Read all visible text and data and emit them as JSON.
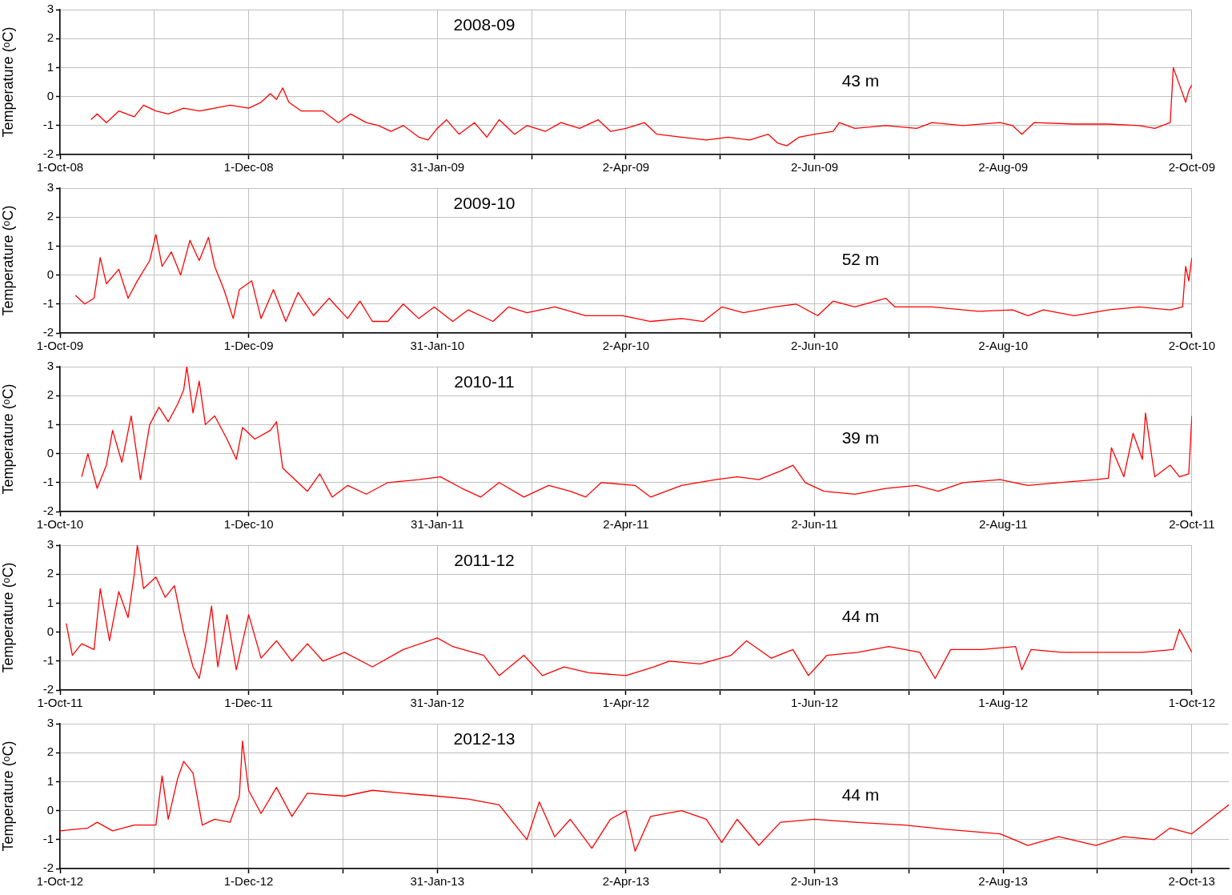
{
  "chart_data": [
    {
      "type": "line",
      "annotations": [
        "2008-09",
        "43 m"
      ],
      "ylabel": "Temperature (ᵒC)",
      "color": "#ff0000",
      "grid": true,
      "ylim": [
        -2,
        3
      ],
      "yticks": [
        -2,
        -1,
        0,
        1,
        2,
        3
      ],
      "xlim": [
        "2008-10-01",
        "2009-10-02"
      ],
      "xticks": [
        {
          "value": "2008-10-01",
          "label": "1-Oct-08"
        },
        {
          "value": "2008-10-31T12:00",
          "label": null
        },
        {
          "value": "2008-12-01",
          "label": "1-Dec-08"
        },
        {
          "value": "2008-12-31T12:00",
          "label": null
        },
        {
          "value": "2009-01-31",
          "label": "31-Jan-09"
        },
        {
          "value": "2009-03-02T12:00",
          "label": null
        },
        {
          "value": "2009-04-02",
          "label": "2-Apr-09"
        },
        {
          "value": "2009-05-02T12:00",
          "label": null
        },
        {
          "value": "2009-06-02",
          "label": "2-Jun-09"
        },
        {
          "value": "2009-07-02T12:00",
          "label": null
        },
        {
          "value": "2009-08-02",
          "label": "2-Aug-09"
        },
        {
          "value": "2009-09-01T12:00",
          "label": null
        },
        {
          "value": "2009-10-02",
          "label": "2-Oct-09"
        }
      ],
      "x": [
        "2008-10-11",
        "2008-10-13",
        "2008-10-16",
        "2008-10-20",
        "2008-10-25",
        "2008-10-28",
        "2008-11-01",
        "2008-11-05",
        "2008-11-10",
        "2008-11-15",
        "2008-11-20",
        "2008-11-25",
        "2008-12-01",
        "2008-12-05",
        "2008-12-08",
        "2008-12-10",
        "2008-12-12",
        "2008-12-14",
        "2008-12-18",
        "2008-12-25",
        "2008-12-30",
        "2009-01-03",
        "2009-01-08",
        "2009-01-12",
        "2009-01-16",
        "2009-01-20",
        "2009-01-25",
        "2009-01-28",
        "2009-01-31",
        "2009-02-03",
        "2009-02-07",
        "2009-02-12",
        "2009-02-16",
        "2009-02-20",
        "2009-02-25",
        "2009-03-01",
        "2009-03-07",
        "2009-03-12",
        "2009-03-18",
        "2009-03-24",
        "2009-03-28",
        "2009-04-02",
        "2009-04-08",
        "2009-04-12",
        "2009-04-20",
        "2009-04-28",
        "2009-05-05",
        "2009-05-12",
        "2009-05-18",
        "2009-05-21",
        "2009-05-24",
        "2009-05-28",
        "2009-06-02",
        "2009-06-08",
        "2009-06-10",
        "2009-06-15",
        "2009-06-25",
        "2009-07-05",
        "2009-07-10",
        "2009-07-20",
        "2009-08-01",
        "2009-08-05",
        "2009-08-08",
        "2009-08-12",
        "2009-08-25",
        "2009-09-05",
        "2009-09-15",
        "2009-09-20",
        "2009-09-25",
        "2009-09-26",
        "2009-09-28",
        "2009-09-30",
        "2009-10-01",
        "2009-10-02"
      ],
      "values": [
        -0.8,
        -0.6,
        -0.9,
        -0.5,
        -0.7,
        -0.3,
        -0.5,
        -0.6,
        -0.4,
        -0.5,
        -0.4,
        -0.3,
        -0.4,
        -0.2,
        0.1,
        -0.1,
        0.3,
        -0.2,
        -0.5,
        -0.5,
        -0.9,
        -0.6,
        -0.9,
        -1.0,
        -1.2,
        -1.0,
        -1.4,
        -1.5,
        -1.1,
        -0.8,
        -1.3,
        -0.9,
        -1.4,
        -0.8,
        -1.3,
        -1.0,
        -1.2,
        -0.9,
        -1.1,
        -0.8,
        -1.2,
        -1.1,
        -0.9,
        -1.3,
        -1.4,
        -1.5,
        -1.4,
        -1.5,
        -1.3,
        -1.6,
        -1.7,
        -1.4,
        -1.3,
        -1.2,
        -0.9,
        -1.1,
        -1.0,
        -1.1,
        -0.9,
        -1.0,
        -0.9,
        -1.0,
        -1.3,
        -0.9,
        -0.95,
        -0.95,
        -1.0,
        -1.1,
        -0.9,
        1.0,
        0.4,
        -0.2,
        0.2,
        0.4
      ]
    },
    {
      "type": "line",
      "annotations": [
        "2009-10",
        "52 m"
      ],
      "ylabel": "Temperature (ᵒC)",
      "color": "#ff0000",
      "grid": true,
      "ylim": [
        -2,
        3
      ],
      "yticks": [
        -2,
        -1,
        0,
        1,
        2,
        3
      ],
      "xlim": [
        "2009-10-01",
        "2010-10-02"
      ],
      "xticks": [
        {
          "value": "2009-10-01",
          "label": "1-Oct-09"
        },
        {
          "value": "2009-10-31T12:00",
          "label": null
        },
        {
          "value": "2009-12-01",
          "label": "1-Dec-09"
        },
        {
          "value": "2009-12-31T12:00",
          "label": null
        },
        {
          "value": "2010-01-31",
          "label": "31-Jan-10"
        },
        {
          "value": "2010-03-02T12:00",
          "label": null
        },
        {
          "value": "2010-04-02",
          "label": "2-Apr-10"
        },
        {
          "value": "2010-05-02T12:00",
          "label": null
        },
        {
          "value": "2010-06-02",
          "label": "2-Jun-10"
        },
        {
          "value": "2010-07-02T12:00",
          "label": null
        },
        {
          "value": "2010-08-02",
          "label": "2-Aug-10"
        },
        {
          "value": "2010-09-01T12:00",
          "label": null
        },
        {
          "value": "2010-10-02",
          "label": "2-Oct-10"
        }
      ],
      "x": [
        "2009-10-06",
        "2009-10-09",
        "2009-10-12",
        "2009-10-14",
        "2009-10-16",
        "2009-10-20",
        "2009-10-23",
        "2009-10-26",
        "2009-10-30",
        "2009-11-01",
        "2009-11-03",
        "2009-11-06",
        "2009-11-09",
        "2009-11-12",
        "2009-11-15",
        "2009-11-18",
        "2009-11-20",
        "2009-11-23",
        "2009-11-26",
        "2009-11-28",
        "2009-12-02",
        "2009-12-05",
        "2009-12-09",
        "2009-12-13",
        "2009-12-17",
        "2009-12-22",
        "2009-12-27",
        "2010-01-02",
        "2010-01-06",
        "2010-01-10",
        "2010-01-15",
        "2010-01-20",
        "2010-01-25",
        "2010-01-30",
        "2010-02-05",
        "2010-02-10",
        "2010-02-18",
        "2010-02-23",
        "2010-03-01",
        "2010-03-10",
        "2010-03-20",
        "2010-04-01",
        "2010-04-10",
        "2010-04-20",
        "2010-04-27",
        "2010-05-03",
        "2010-05-10",
        "2010-05-20",
        "2010-05-27",
        "2010-06-03",
        "2010-06-08",
        "2010-06-15",
        "2010-06-25",
        "2010-06-28",
        "2010-07-10",
        "2010-07-25",
        "2010-08-05",
        "2010-08-10",
        "2010-08-15",
        "2010-08-25",
        "2010-09-05",
        "2010-09-15",
        "2010-09-25",
        "2010-09-29",
        "2010-09-30",
        "2010-10-01",
        "2010-10-02"
      ],
      "values": [
        -0.7,
        -1.0,
        -0.8,
        0.6,
        -0.3,
        0.2,
        -0.8,
        -0.2,
        0.5,
        1.4,
        0.3,
        0.8,
        0.0,
        1.2,
        0.5,
        1.3,
        0.3,
        -0.5,
        -1.5,
        -0.5,
        -0.2,
        -1.5,
        -0.5,
        -1.6,
        -0.6,
        -1.4,
        -0.8,
        -1.5,
        -0.9,
        -1.6,
        -1.6,
        -1.0,
        -1.5,
        -1.1,
        -1.6,
        -1.2,
        -1.6,
        -1.1,
        -1.3,
        -1.1,
        -1.4,
        -1.4,
        -1.6,
        -1.5,
        -1.6,
        -1.1,
        -1.3,
        -1.1,
        -1.0,
        -1.4,
        -0.9,
        -1.1,
        -0.8,
        -1.1,
        -1.1,
        -1.25,
        -1.2,
        -1.4,
        -1.2,
        -1.4,
        -1.2,
        -1.1,
        -1.2,
        -1.1,
        0.3,
        -0.2,
        0.6
      ]
    },
    {
      "type": "line",
      "annotations": [
        "2010-11",
        "39 m"
      ],
      "ylabel": "Temperature (ᵒC)",
      "color": "#ff0000",
      "grid": true,
      "ylim": [
        -2,
        3
      ],
      "yticks": [
        -2,
        -1,
        0,
        1,
        2,
        3
      ],
      "xlim": [
        "2010-10-01",
        "2011-10-02"
      ],
      "xticks": [
        {
          "value": "2010-10-01",
          "label": "1-Oct-10"
        },
        {
          "value": "2010-10-31T12:00",
          "label": null
        },
        {
          "value": "2010-12-01",
          "label": "1-Dec-10"
        },
        {
          "value": "2010-12-31T12:00",
          "label": null
        },
        {
          "value": "2011-01-31",
          "label": "31-Jan-11"
        },
        {
          "value": "2011-03-02T12:00",
          "label": null
        },
        {
          "value": "2011-04-02",
          "label": "2-Apr-11"
        },
        {
          "value": "2011-05-02T12:00",
          "label": null
        },
        {
          "value": "2011-06-02",
          "label": "2-Jun-11"
        },
        {
          "value": "2011-07-02T12:00",
          "label": null
        },
        {
          "value": "2011-08-02",
          "label": "2-Aug-11"
        },
        {
          "value": "2011-09-01T12:00",
          "label": null
        },
        {
          "value": "2011-10-02",
          "label": "2-Oct-11"
        }
      ],
      "x": [
        "2010-10-08",
        "2010-10-10",
        "2010-10-13",
        "2010-10-16",
        "2010-10-18",
        "2010-10-21",
        "2010-10-24",
        "2010-10-27",
        "2010-10-30",
        "2010-11-02",
        "2010-11-05",
        "2010-11-08",
        "2010-11-10",
        "2010-11-11",
        "2010-11-13",
        "2010-11-15",
        "2010-11-17",
        "2010-11-20",
        "2010-11-24",
        "2010-11-27",
        "2010-11-29",
        "2010-12-03",
        "2010-12-08",
        "2010-12-10",
        "2010-12-12",
        "2010-12-16",
        "2010-12-20",
        "2010-12-24",
        "2010-12-28",
        "2011-01-02",
        "2011-01-08",
        "2011-01-15",
        "2011-01-25",
        "2011-02-01",
        "2011-02-08",
        "2011-02-14",
        "2011-02-20",
        "2011-02-28",
        "2011-03-08",
        "2011-03-15",
        "2011-03-20",
        "2011-03-25",
        "2011-04-05",
        "2011-04-10",
        "2011-04-20",
        "2011-05-01",
        "2011-05-08",
        "2011-05-15",
        "2011-05-22",
        "2011-05-26",
        "2011-05-30",
        "2011-06-05",
        "2011-06-15",
        "2011-06-25",
        "2011-07-05",
        "2011-07-12",
        "2011-07-20",
        "2011-08-01",
        "2011-08-10",
        "2011-08-20",
        "2011-09-01",
        "2011-09-05",
        "2011-09-06",
        "2011-09-10",
        "2011-09-13",
        "2011-09-16",
        "2011-09-17",
        "2011-09-20",
        "2011-09-25",
        "2011-09-28",
        "2011-10-01",
        "2011-10-02"
      ],
      "values": [
        -0.8,
        0.0,
        -1.2,
        -0.4,
        0.8,
        -0.3,
        1.3,
        -0.9,
        1.0,
        1.6,
        1.1,
        1.7,
        2.2,
        3.0,
        1.4,
        2.5,
        1.0,
        1.3,
        0.5,
        -0.2,
        0.9,
        0.5,
        0.8,
        1.1,
        -0.5,
        -0.9,
        -1.3,
        -0.7,
        -1.5,
        -1.1,
        -1.4,
        -1.0,
        -0.9,
        -0.8,
        -1.2,
        -1.5,
        -1.0,
        -1.5,
        -1.1,
        -1.3,
        -1.5,
        -1.0,
        -1.1,
        -1.5,
        -1.1,
        -0.9,
        -0.8,
        -0.9,
        -0.6,
        -0.4,
        -1.0,
        -1.3,
        -1.4,
        -1.2,
        -1.1,
        -1.3,
        -1.0,
        -0.9,
        -1.1,
        -1.0,
        -0.9,
        -0.85,
        0.2,
        -0.8,
        0.7,
        -0.2,
        1.4,
        -0.8,
        -0.4,
        -0.8,
        -0.7,
        1.3
      ]
    },
    {
      "type": "line",
      "annotations": [
        "2011-12",
        "44 m"
      ],
      "ylabel": "Temperature (ᵒC)",
      "color": "#ff0000",
      "grid": true,
      "ylim": [
        -2,
        3
      ],
      "yticks": [
        -2,
        -1,
        0,
        1,
        2,
        3
      ],
      "xlim": [
        "2011-10-01",
        "2012-10-01"
      ],
      "xticks": [
        {
          "value": "2011-10-01",
          "label": "1-Oct-11"
        },
        {
          "value": "2011-10-31T12:00",
          "label": null
        },
        {
          "value": "2011-12-01",
          "label": "1-Dec-11"
        },
        {
          "value": "2011-12-31T12:00",
          "label": null
        },
        {
          "value": "2012-01-31",
          "label": "31-Jan-12"
        },
        {
          "value": "2012-03-01T12:00",
          "label": null
        },
        {
          "value": "2012-04-01",
          "label": "1-Apr-12"
        },
        {
          "value": "2012-05-01T12:00",
          "label": null
        },
        {
          "value": "2012-06-01",
          "label": "1-Jun-12"
        },
        {
          "value": "2012-07-01T12:00",
          "label": null
        },
        {
          "value": "2012-08-01",
          "label": "1-Aug-12"
        },
        {
          "value": "2012-08-31T12:00",
          "label": null
        },
        {
          "value": "2012-10-01",
          "label": "1-Oct-12"
        }
      ],
      "x": [
        "2011-10-03",
        "2011-10-05",
        "2011-10-08",
        "2011-10-12",
        "2011-10-14",
        "2011-10-17",
        "2011-10-20",
        "2011-10-23",
        "2011-10-25",
        "2011-10-26",
        "2011-10-28",
        "2011-11-01",
        "2011-11-04",
        "2011-11-07",
        "2011-11-10",
        "2011-11-13",
        "2011-11-15",
        "2011-11-17",
        "2011-11-19",
        "2011-11-21",
        "2011-11-24",
        "2011-11-27",
        "2011-12-01",
        "2011-12-05",
        "2011-12-10",
        "2011-12-15",
        "2011-12-20",
        "2011-12-25",
        "2012-01-01",
        "2012-01-10",
        "2012-01-20",
        "2012-01-31",
        "2012-02-05",
        "2012-02-15",
        "2012-02-20",
        "2012-02-28",
        "2012-03-05",
        "2012-03-12",
        "2012-03-20",
        "2012-04-01",
        "2012-04-10",
        "2012-04-15",
        "2012-04-25",
        "2012-05-05",
        "2012-05-10",
        "2012-05-18",
        "2012-05-25",
        "2012-05-30",
        "2012-06-05",
        "2012-06-15",
        "2012-06-25",
        "2012-07-05",
        "2012-07-10",
        "2012-07-15",
        "2012-07-25",
        "2012-08-05",
        "2012-08-07",
        "2012-08-10",
        "2012-08-20",
        "2012-09-01",
        "2012-09-15",
        "2012-09-25",
        "2012-09-27",
        "2012-10-01"
      ],
      "values": [
        0.3,
        -0.8,
        -0.4,
        -0.6,
        1.5,
        -0.3,
        1.4,
        0.5,
        2.0,
        3.0,
        1.5,
        1.9,
        1.2,
        1.6,
        0.0,
        -1.2,
        -1.6,
        -0.5,
        0.9,
        -1.2,
        0.6,
        -1.3,
        0.6,
        -0.9,
        -0.3,
        -1.0,
        -0.4,
        -1.0,
        -0.7,
        -1.2,
        -0.6,
        -0.2,
        -0.5,
        -0.8,
        -1.5,
        -0.8,
        -1.5,
        -1.2,
        -1.4,
        -1.5,
        -1.2,
        -1.0,
        -1.1,
        -0.8,
        -0.3,
        -0.9,
        -0.6,
        -1.5,
        -0.8,
        -0.7,
        -0.5,
        -0.7,
        -1.6,
        -0.6,
        -0.6,
        -0.5,
        -1.3,
        -0.6,
        -0.7,
        -0.7,
        -0.7,
        -0.6,
        0.1,
        -0.7
      ]
    },
    {
      "type": "line",
      "annotations": [
        "2012-13",
        "44 m"
      ],
      "ylabel": "Temperature (ᵒC)",
      "color": "#ff0000",
      "grid": true,
      "ylim": [
        -2,
        3
      ],
      "yticks": [
        -2,
        -1,
        0,
        1,
        2,
        3
      ],
      "xlim": [
        "2012-10-01",
        "2013-10-14"
      ],
      "xticks": [
        {
          "value": "2012-10-01",
          "label": "1-Oct-12"
        },
        {
          "value": "2012-10-31T12:00",
          "label": null
        },
        {
          "value": "2012-12-01",
          "label": "1-Dec-12"
        },
        {
          "value": "2012-12-31T12:00",
          "label": null
        },
        {
          "value": "2013-01-31",
          "label": "31-Jan-13"
        },
        {
          "value": "2013-03-02T12:00",
          "label": null
        },
        {
          "value": "2013-04-02",
          "label": "2-Apr-13"
        },
        {
          "value": "2013-05-02T12:00",
          "label": null
        },
        {
          "value": "2013-06-02",
          "label": "2-Jun-13"
        },
        {
          "value": "2013-07-02T12:00",
          "label": null
        },
        {
          "value": "2013-08-02",
          "label": "2-Aug-13"
        },
        {
          "value": "2013-09-01T12:00",
          "label": null
        },
        {
          "value": "2013-10-02",
          "label": "2-Oct-13"
        }
      ],
      "x": [
        "2012-10-01",
        "2012-10-10",
        "2012-10-13",
        "2012-10-18",
        "2012-10-25",
        "2012-11-01",
        "2012-11-03",
        "2012-11-05",
        "2012-11-08",
        "2012-11-10",
        "2012-11-13",
        "2012-11-16",
        "2012-11-20",
        "2012-11-25",
        "2012-11-28",
        "2012-11-29",
        "2012-12-01",
        "2012-12-05",
        "2012-12-10",
        "2012-12-15",
        "2012-12-20",
        "2013-01-01",
        "2013-01-10",
        "2013-01-20",
        "2013-01-31",
        "2013-02-10",
        "2013-02-20",
        "2013-03-01",
        "2013-03-05",
        "2013-03-10",
        "2013-03-15",
        "2013-03-22",
        "2013-03-28",
        "2013-04-02",
        "2013-04-05",
        "2013-04-10",
        "2013-04-20",
        "2013-04-28",
        "2013-05-03",
        "2013-05-08",
        "2013-05-15",
        "2013-05-22",
        "2013-06-02",
        "2013-06-15",
        "2013-07-01",
        "2013-07-15",
        "2013-08-01",
        "2013-08-10",
        "2013-08-20",
        "2013-09-01",
        "2013-09-10",
        "2013-09-20",
        "2013-09-25",
        "2013-10-02",
        "2013-10-08",
        "2013-10-14"
      ],
      "values": [
        -0.7,
        -0.6,
        -0.4,
        -0.7,
        -0.5,
        -0.5,
        1.2,
        -0.3,
        1.1,
        1.7,
        1.3,
        -0.5,
        -0.3,
        -0.4,
        0.5,
        2.4,
        0.7,
        -0.1,
        0.8,
        -0.2,
        0.6,
        0.5,
        0.7,
        0.6,
        0.5,
        0.4,
        0.2,
        -1.0,
        0.3,
        -0.9,
        -0.3,
        -1.3,
        -0.3,
        0.0,
        -1.4,
        -0.2,
        0.0,
        -0.3,
        -1.1,
        -0.3,
        -1.2,
        -0.4,
        -0.3,
        -0.4,
        -0.5,
        -0.65,
        -0.8,
        -1.2,
        -0.9,
        -1.2,
        -0.9,
        -1.0,
        -0.6,
        -0.8,
        -0.3,
        0.2
      ]
    }
  ]
}
